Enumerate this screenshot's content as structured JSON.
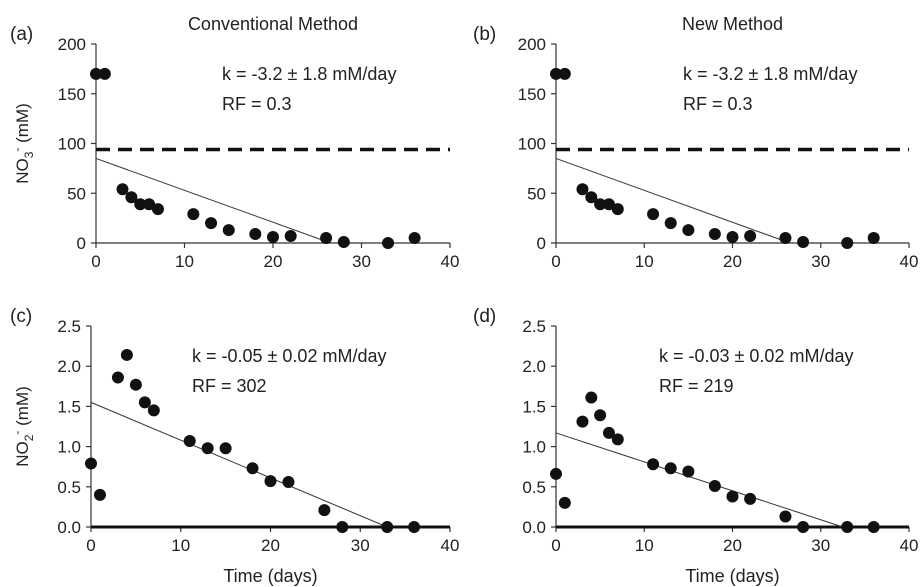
{
  "chart_data": [
    {
      "panel_letter": "(a)",
      "title": "Conventional Method",
      "type": "scatter",
      "ylabel": "NO3- (mM)",
      "ylabel_parts": {
        "base": "NO",
        "sub": "3",
        "sup": "-",
        "unit": " (mM)"
      },
      "xlabel": "",
      "xlim": [
        0,
        40
      ],
      "ylim": [
        0,
        200
      ],
      "xticks": [
        0,
        10,
        20,
        30,
        40
      ],
      "yticks": [
        0,
        50,
        100,
        150,
        200
      ],
      "ytick_labels": [
        "0",
        "50",
        "100",
        "150",
        "200"
      ],
      "points": [
        [
          0,
          170
        ],
        [
          1,
          170
        ],
        [
          3,
          54
        ],
        [
          4,
          46
        ],
        [
          5,
          39
        ],
        [
          6,
          39
        ],
        [
          7,
          34
        ],
        [
          11,
          29
        ],
        [
          13,
          20
        ],
        [
          15,
          13
        ],
        [
          18,
          9
        ],
        [
          20,
          6
        ],
        [
          22,
          7
        ],
        [
          26,
          5
        ],
        [
          28,
          1
        ],
        [
          33,
          0
        ],
        [
          36,
          5
        ]
      ],
      "fit_line": [
        [
          0,
          85
        ],
        [
          26.5,
          0
        ]
      ],
      "reference_line_y": 94,
      "annotations": [
        "k = -3.2 ± 1.8 mM/day",
        "RF = 0.3"
      ]
    },
    {
      "panel_letter": "(b)",
      "title": "New Method",
      "type": "scatter",
      "ylabel": "",
      "xlabel": "",
      "xlim": [
        0,
        40
      ],
      "ylim": [
        0,
        200
      ],
      "xticks": [
        0,
        10,
        20,
        30,
        40
      ],
      "yticks": [
        0,
        50,
        100,
        150,
        200
      ],
      "ytick_labels": [
        "0",
        "50",
        "100",
        "150",
        "200"
      ],
      "points": [
        [
          0,
          170
        ],
        [
          1,
          170
        ],
        [
          3,
          54
        ],
        [
          4,
          46
        ],
        [
          5,
          39
        ],
        [
          6,
          39
        ],
        [
          7,
          34
        ],
        [
          11,
          29
        ],
        [
          13,
          20
        ],
        [
          15,
          13
        ],
        [
          18,
          9
        ],
        [
          20,
          6
        ],
        [
          22,
          7
        ],
        [
          26,
          5
        ],
        [
          28,
          1
        ],
        [
          33,
          0
        ],
        [
          36,
          5
        ]
      ],
      "fit_line": [
        [
          0,
          85
        ],
        [
          26.5,
          0
        ]
      ],
      "reference_line_y": 94,
      "annotations": [
        "k = -3.2 ± 1.8 mM/day",
        "RF = 0.3"
      ]
    },
    {
      "panel_letter": "(c)",
      "title": "",
      "type": "scatter",
      "ylabel": "NO2- (mM)",
      "ylabel_parts": {
        "base": "NO",
        "sub": "2",
        "sup": "-",
        "unit": " (mM)"
      },
      "xlabel": "Time (days)",
      "xlim": [
        0,
        40
      ],
      "ylim": [
        0,
        2.5
      ],
      "xticks": [
        0,
        10,
        20,
        30,
        40
      ],
      "yticks": [
        0,
        0.5,
        1,
        1.5,
        2,
        2.5
      ],
      "ytick_labels": [
        "0.0",
        "0.5",
        "1.0",
        "1.5",
        "2.0",
        "2.5"
      ],
      "points": [
        [
          0,
          0.79
        ],
        [
          1,
          0.4
        ],
        [
          3,
          1.86
        ],
        [
          4,
          2.14
        ],
        [
          5,
          1.77
        ],
        [
          6,
          1.55
        ],
        [
          7,
          1.45
        ],
        [
          11,
          1.07
        ],
        [
          13,
          0.98
        ],
        [
          15,
          0.98
        ],
        [
          18,
          0.73
        ],
        [
          20,
          0.57
        ],
        [
          22,
          0.56
        ],
        [
          26,
          0.21
        ],
        [
          28,
          0.0
        ],
        [
          33,
          0.0
        ],
        [
          36,
          0.0
        ]
      ],
      "fit_line": [
        [
          0,
          1.55
        ],
        [
          33,
          0.0
        ]
      ],
      "reference_line_y": 0.0,
      "annotations": [
        "k = -0.05 ± 0.02 mM/day",
        "RF = 302"
      ]
    },
    {
      "panel_letter": "(d)",
      "title": "",
      "type": "scatter",
      "ylabel": "",
      "xlabel": "Time (days)",
      "xlim": [
        0,
        40
      ],
      "ylim": [
        0,
        2.5
      ],
      "xticks": [
        0,
        10,
        20,
        30,
        40
      ],
      "yticks": [
        0,
        0.5,
        1,
        1.5,
        2,
        2.5
      ],
      "ytick_labels": [
        "0.0",
        "0.5",
        "1.0",
        "1.5",
        "2.0",
        "2.5"
      ],
      "points": [
        [
          0,
          0.66
        ],
        [
          1,
          0.3
        ],
        [
          3,
          1.31
        ],
        [
          4,
          1.61
        ],
        [
          5,
          1.39
        ],
        [
          6,
          1.17
        ],
        [
          7,
          1.09
        ],
        [
          11,
          0.78
        ],
        [
          13,
          0.73
        ],
        [
          15,
          0.69
        ],
        [
          18,
          0.51
        ],
        [
          20,
          0.38
        ],
        [
          22,
          0.35
        ],
        [
          26,
          0.13
        ],
        [
          28,
          0.0
        ],
        [
          33,
          0.0
        ],
        [
          36,
          0.0
        ]
      ],
      "fit_line": [
        [
          0,
          1.17
        ],
        [
          32.5,
          0.0
        ]
      ],
      "reference_line_y": 0.0,
      "annotations": [
        "k = -0.03 ± 0.02 mM/day",
        "RF = 219"
      ]
    }
  ]
}
